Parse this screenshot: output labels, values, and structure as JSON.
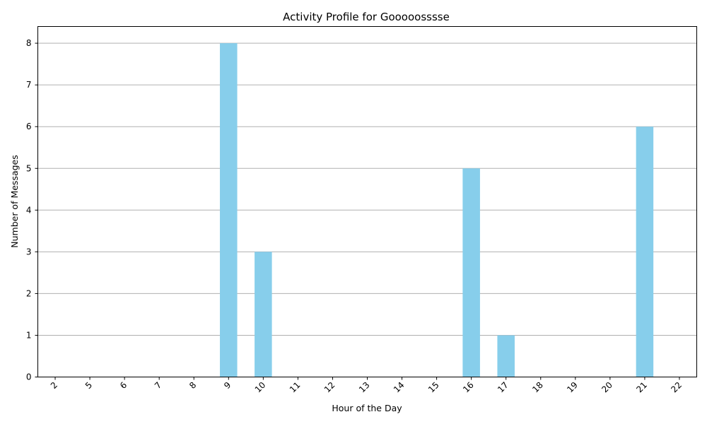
{
  "chart_data": {
    "type": "bar",
    "title": "Activity Profile for Gooooosssse",
    "xlabel": "Hour of the Day",
    "ylabel": "Number of Messages",
    "categories": [
      "2",
      "5",
      "6",
      "7",
      "8",
      "9",
      "10",
      "11",
      "12",
      "13",
      "14",
      "15",
      "16",
      "17",
      "18",
      "19",
      "20",
      "21",
      "22"
    ],
    "values": [
      0,
      0,
      0,
      0,
      0,
      8,
      3,
      0,
      0,
      0,
      0,
      0,
      5,
      1,
      0,
      0,
      0,
      6,
      0
    ],
    "ylim": [
      0,
      8.4
    ],
    "yticks": [
      0,
      1,
      2,
      3,
      4,
      5,
      6,
      7,
      8
    ],
    "grid": "y",
    "bar_color": "#87ceeb",
    "x_tick_rotation": 45
  }
}
